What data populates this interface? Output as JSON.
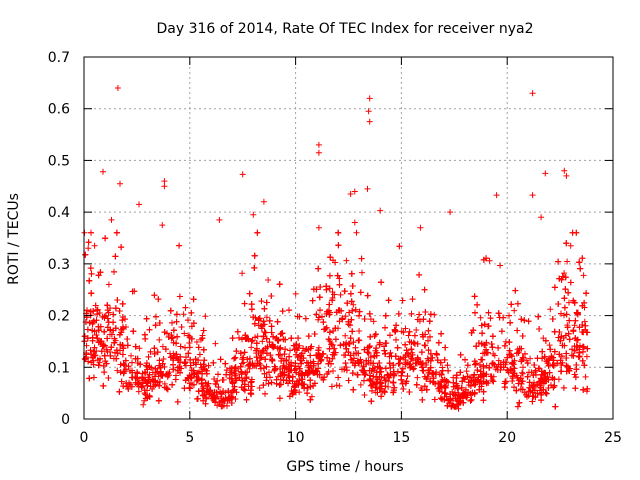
{
  "chart_data": {
    "type": "scatter",
    "title": "Day 316 of 2014, Rate Of TEC Index for receiver nya2",
    "xlabel": "GPS time / hours",
    "ylabel": "ROTI / TECUs",
    "xlim": [
      0,
      25
    ],
    "ylim": [
      0,
      0.7
    ],
    "xticks": [
      0,
      5,
      10,
      15,
      20,
      25
    ],
    "yticks": [
      0,
      0.1,
      0.2,
      0.3,
      0.4,
      0.5,
      0.6,
      0.7
    ],
    "xtick_labels": [
      "0",
      "5",
      "10",
      "15",
      "20",
      "25"
    ],
    "ytick_labels": [
      "0",
      "0.1",
      "0.2",
      "0.3",
      "0.4",
      "0.5",
      "0.6",
      "0.7"
    ],
    "grid": true,
    "marker": "+",
    "color": "#ff0000",
    "series": [
      {
        "name": "nya2",
        "x_range_hours": [
          0,
          23.8
        ],
        "typical_roti_band": [
          0.03,
          0.3
        ],
        "median_roti": 0.1,
        "outliers": [
          {
            "x": 1.6,
            "y": 0.64
          },
          {
            "x": 21.2,
            "y": 0.63
          },
          {
            "x": 13.5,
            "y": 0.62
          },
          {
            "x": 13.45,
            "y": 0.595
          },
          {
            "x": 13.5,
            "y": 0.575
          },
          {
            "x": 11.1,
            "y": 0.53
          },
          {
            "x": 11.1,
            "y": 0.515
          },
          {
            "x": 0.9,
            "y": 0.478
          },
          {
            "x": 22.7,
            "y": 0.48
          },
          {
            "x": 22.8,
            "y": 0.47
          },
          {
            "x": 21.8,
            "y": 0.475
          },
          {
            "x": 7.5,
            "y": 0.473
          },
          {
            "x": 1.7,
            "y": 0.455
          },
          {
            "x": 3.8,
            "y": 0.46
          },
          {
            "x": 3.8,
            "y": 0.45
          },
          {
            "x": 13.4,
            "y": 0.445
          },
          {
            "x": 12.8,
            "y": 0.44
          },
          {
            "x": 12.6,
            "y": 0.435
          },
          {
            "x": 19.5,
            "y": 0.433
          },
          {
            "x": 21.2,
            "y": 0.433
          },
          {
            "x": 8.5,
            "y": 0.42
          },
          {
            "x": 2.6,
            "y": 0.415
          },
          {
            "x": 14.0,
            "y": 0.403
          },
          {
            "x": 17.3,
            "y": 0.4
          },
          {
            "x": 8.0,
            "y": 0.395
          },
          {
            "x": 1.3,
            "y": 0.385
          },
          {
            "x": 6.4,
            "y": 0.385
          },
          {
            "x": 21.6,
            "y": 0.39
          },
          {
            "x": 12.8,
            "y": 0.38
          },
          {
            "x": 3.7,
            "y": 0.375
          },
          {
            "x": 11.1,
            "y": 0.37
          },
          {
            "x": 15.9,
            "y": 0.37
          },
          {
            "x": 0.2,
            "y": 0.33
          },
          {
            "x": 0.5,
            "y": 0.335
          },
          {
            "x": 23.0,
            "y": 0.335
          },
          {
            "x": 17.7,
            "y": 0.02
          }
        ]
      }
    ]
  }
}
